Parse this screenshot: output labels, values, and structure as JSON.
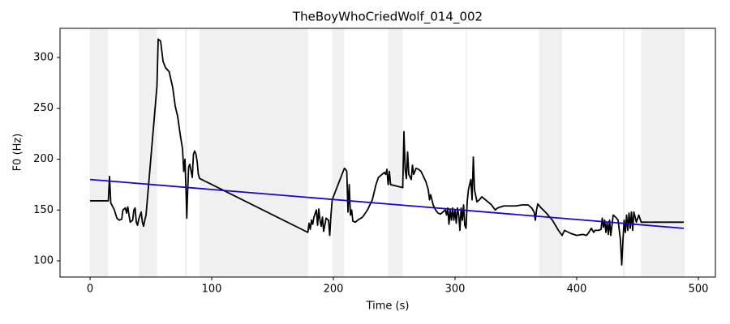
{
  "chart_data": {
    "type": "line",
    "title": "TheBoyWhoCriedWolf_014_002",
    "x_label": "Time (s)",
    "y_label": "F0 (Hz)",
    "xlim": [
      -24.7,
      514
    ],
    "ylim": [
      84.1,
      328.6
    ],
    "xticks": [
      0,
      100,
      200,
      300,
      400,
      500
    ],
    "yticks": [
      100,
      150,
      200,
      250,
      300
    ],
    "shade_color": "#f0f0f0",
    "shaded_spans": [
      [
        0,
        15
      ],
      [
        40,
        55
      ],
      [
        78,
        79.5
      ],
      [
        90,
        179
      ],
      [
        199,
        209
      ],
      [
        245,
        257
      ],
      [
        309,
        310
      ],
      [
        369,
        388
      ],
      [
        438,
        439.5
      ],
      [
        453,
        489
      ]
    ],
    "series": [
      {
        "color": "#000000",
        "x": [
          0,
          15,
          16,
          17,
          20,
          22,
          24,
          26,
          27,
          29,
          30,
          31,
          32,
          33,
          35,
          36,
          37,
          38,
          39,
          40,
          42,
          43,
          44,
          45,
          46,
          55,
          56,
          58,
          60,
          62,
          65,
          68,
          70,
          72,
          74,
          76,
          77,
          78,
          79,
          79.5,
          80,
          81,
          82,
          84,
          85,
          86,
          87,
          88,
          89,
          90,
          179,
          180,
          181,
          182,
          183,
          184,
          186,
          187,
          188,
          189,
          190,
          191,
          192,
          194,
          196,
          197,
          198,
          199,
          209,
          210,
          211,
          212,
          213,
          214,
          215,
          216,
          218,
          220,
          224,
          228,
          232,
          235,
          237,
          240,
          242,
          243,
          244,
          245,
          246,
          247,
          257,
          258,
          259,
          260,
          261,
          262,
          264,
          265,
          266,
          268,
          270,
          272,
          274,
          276,
          278,
          279,
          280,
          282,
          284,
          286,
          288,
          290,
          292,
          293,
          294,
          295,
          296,
          297,
          298,
          299,
          300,
          301,
          302,
          303,
          304,
          305,
          306,
          307,
          308,
          309,
          310,
          311,
          312,
          313,
          314,
          315,
          316,
          318,
          320,
          322,
          324,
          328,
          330,
          333,
          335,
          340,
          350,
          355,
          360,
          363,
          365,
          366,
          367,
          368,
          370,
          375,
          380,
          385,
          388,
          390,
          395,
          400,
          405,
          408,
          410,
          412,
          414,
          415,
          418,
          420,
          421,
          422,
          423,
          424,
          425,
          426,
          427,
          428,
          430,
          432,
          434,
          436,
          437,
          438,
          439,
          440,
          441,
          442,
          443,
          444,
          445,
          446,
          447,
          449,
          451,
          453,
          488
        ],
        "values": [
          159,
          159,
          183,
          157,
          150,
          142,
          140,
          141,
          150,
          152,
          147,
          153,
          145,
          138,
          140,
          150,
          152,
          138,
          135,
          141,
          148,
          138,
          134,
          140,
          145,
          272,
          318,
          316,
          296,
          290,
          286,
          270,
          252,
          242,
          225,
          210,
          188,
          200,
          165,
          142,
          162,
          192,
          195,
          182,
          205,
          208,
          205,
          198,
          185,
          181,
          128,
          137,
          131,
          140,
          136,
          143,
          150,
          135,
          151,
          140,
          134,
          143,
          129,
          142,
          140,
          125,
          145,
          160,
          191,
          190,
          188,
          148,
          175,
          145,
          150,
          139,
          138,
          140,
          143,
          150,
          160,
          175,
          182,
          185,
          187,
          185,
          190,
          175,
          188,
          175,
          172,
          227,
          190,
          181,
          207,
          185,
          180,
          194,
          185,
          191,
          190,
          188,
          183,
          178,
          170,
          160,
          165,
          155,
          150,
          147,
          146,
          148,
          150,
          145,
          152,
          136,
          150,
          140,
          152,
          140,
          150,
          137,
          152,
          145,
          130,
          152,
          140,
          155,
          135,
          132,
          158,
          170,
          175,
          180,
          160,
          202,
          170,
          158,
          160,
          163,
          161,
          157,
          155,
          150,
          152,
          154,
          154,
          155,
          155,
          152,
          148,
          140,
          150,
          156,
          153,
          147,
          140,
          130,
          125,
          130,
          127,
          125,
          126,
          125,
          128,
          132,
          128,
          130,
          130,
          131,
          142,
          133,
          140,
          128,
          138,
          126,
          140,
          125,
          145,
          143,
          140,
          120,
          96,
          120,
          140,
          128,
          145,
          130,
          147,
          132,
          148,
          130,
          148,
          138,
          145,
          138,
          138
        ]
      },
      {
        "color": "#2200cc",
        "x": [
          0,
          488
        ],
        "values": [
          180,
          132
        ]
      }
    ]
  }
}
